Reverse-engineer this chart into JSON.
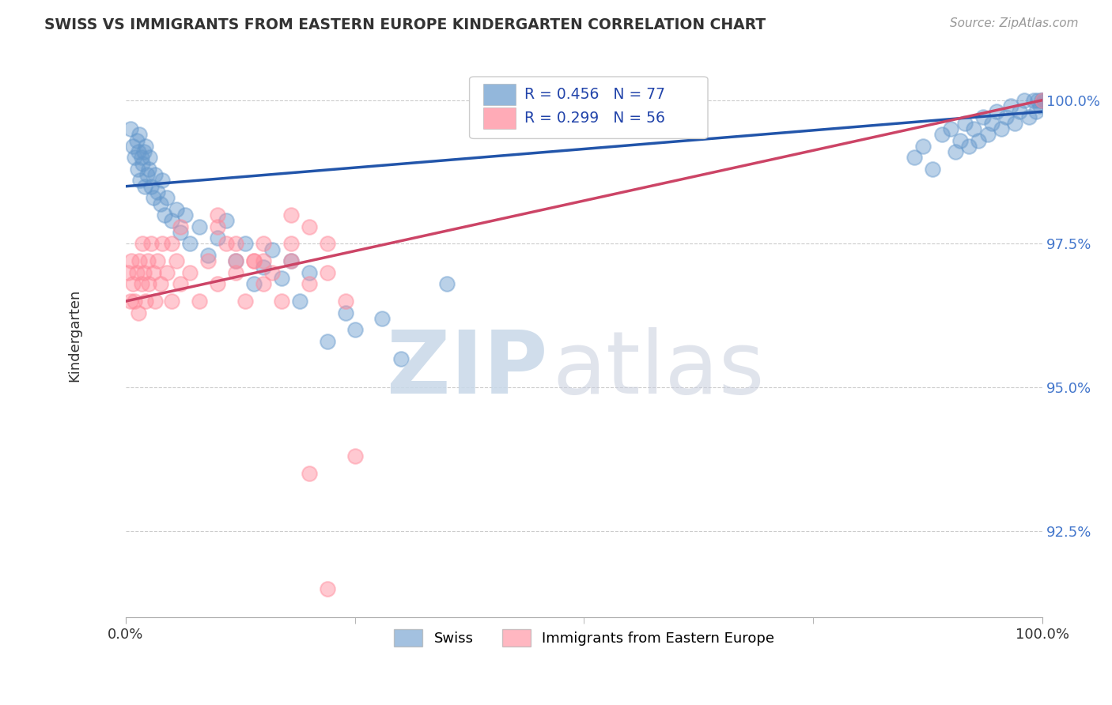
{
  "title": "SWISS VS IMMIGRANTS FROM EASTERN EUROPE KINDERGARTEN CORRELATION CHART",
  "source_text": "Source: ZipAtlas.com",
  "ylabel": "Kindergarten",
  "xlim": [
    0.0,
    100.0
  ],
  "ylim": [
    91.0,
    100.8
  ],
  "yticks": [
    92.5,
    95.0,
    97.5,
    100.0
  ],
  "ytick_labels": [
    "92.5%",
    "95.0%",
    "97.5%",
    "100.0%"
  ],
  "xticks": [
    0.0,
    100.0
  ],
  "xtick_labels": [
    "0.0%",
    "100.0%"
  ],
  "swiss_R": 0.456,
  "swiss_N": 77,
  "imm_R": 0.299,
  "imm_N": 56,
  "swiss_color": "#6699CC",
  "imm_color": "#FF8899",
  "swiss_line_color": "#2255AA",
  "imm_line_color": "#CC4466",
  "background_color": "#FFFFFF",
  "grid_color": "#CCCCCC",
  "swiss_line_y0": 98.5,
  "swiss_line_y1": 99.8,
  "imm_line_y0": 96.5,
  "imm_line_y1": 100.0,
  "swiss_x": [
    0.5,
    0.8,
    1.0,
    1.2,
    1.3,
    1.4,
    1.5,
    1.6,
    1.7,
    1.8,
    2.0,
    2.1,
    2.2,
    2.3,
    2.5,
    2.6,
    2.8,
    3.0,
    3.2,
    3.5,
    3.8,
    4.0,
    4.2,
    4.5,
    5.0,
    5.5,
    6.0,
    6.5,
    7.0,
    8.0,
    9.0,
    10.0,
    11.0,
    12.0,
    13.0,
    14.0,
    15.0,
    16.0,
    17.0,
    18.0,
    19.0,
    20.0,
    22.0,
    24.0,
    25.0,
    28.0,
    30.0,
    35.0,
    86.0,
    87.0,
    88.0,
    89.0,
    90.0,
    90.5,
    91.0,
    91.5,
    92.0,
    92.5,
    93.0,
    93.5,
    94.0,
    94.5,
    95.0,
    95.5,
    96.0,
    96.5,
    97.0,
    97.5,
    98.0,
    98.5,
    99.0,
    99.3,
    99.5,
    99.7,
    99.9,
    100.0,
    100.0
  ],
  "swiss_y": [
    99.5,
    99.2,
    99.0,
    99.3,
    98.8,
    99.1,
    99.4,
    98.6,
    99.0,
    98.9,
    99.1,
    98.5,
    99.2,
    98.7,
    98.8,
    99.0,
    98.5,
    98.3,
    98.7,
    98.4,
    98.2,
    98.6,
    98.0,
    98.3,
    97.9,
    98.1,
    97.7,
    98.0,
    97.5,
    97.8,
    97.3,
    97.6,
    97.9,
    97.2,
    97.5,
    96.8,
    97.1,
    97.4,
    96.9,
    97.2,
    96.5,
    97.0,
    95.8,
    96.3,
    96.0,
    96.2,
    95.5,
    96.8,
    99.0,
    99.2,
    98.8,
    99.4,
    99.5,
    99.1,
    99.3,
    99.6,
    99.2,
    99.5,
    99.3,
    99.7,
    99.4,
    99.6,
    99.8,
    99.5,
    99.7,
    99.9,
    99.6,
    99.8,
    100.0,
    99.7,
    100.0,
    99.8,
    100.0,
    99.9,
    100.0,
    100.0,
    100.0
  ],
  "imm_x": [
    0.3,
    0.5,
    0.6,
    0.8,
    1.0,
    1.2,
    1.4,
    1.5,
    1.7,
    1.8,
    2.0,
    2.2,
    2.4,
    2.5,
    2.8,
    3.0,
    3.2,
    3.5,
    3.8,
    4.0,
    4.5,
    5.0,
    5.5,
    6.0,
    7.0,
    8.0,
    9.0,
    10.0,
    11.0,
    12.0,
    13.0,
    14.0,
    15.0,
    16.0,
    17.0,
    18.0,
    20.0,
    22.0,
    24.0,
    10.0,
    12.0,
    14.0,
    5.0,
    6.0,
    15.0,
    18.0,
    10.0,
    15.0,
    12.0,
    20.0,
    18.0,
    22.0,
    20.0,
    25.0,
    22.0,
    100.0
  ],
  "imm_y": [
    97.0,
    96.5,
    97.2,
    96.8,
    96.5,
    97.0,
    96.3,
    97.2,
    96.8,
    97.5,
    97.0,
    96.5,
    97.2,
    96.8,
    97.5,
    97.0,
    96.5,
    97.2,
    96.8,
    97.5,
    97.0,
    96.5,
    97.2,
    96.8,
    97.0,
    96.5,
    97.2,
    96.8,
    97.5,
    97.0,
    96.5,
    97.2,
    96.8,
    97.0,
    96.5,
    97.2,
    96.8,
    97.0,
    96.5,
    97.8,
    97.5,
    97.2,
    97.5,
    97.8,
    97.2,
    97.5,
    98.0,
    97.5,
    97.2,
    97.8,
    98.0,
    97.5,
    93.5,
    93.8,
    91.5,
    100.0
  ]
}
